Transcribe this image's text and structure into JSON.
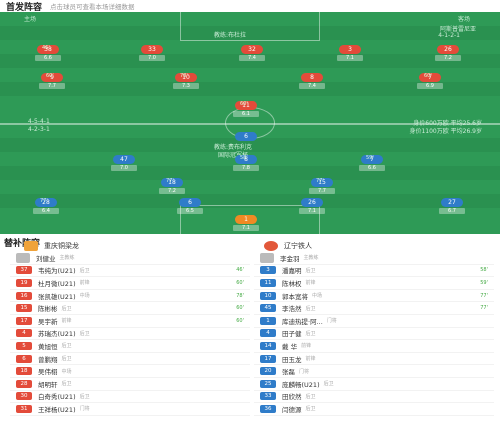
{
  "header": {
    "title": "首发阵容",
    "subtitle": "点击球员可查看本场详细数据"
  },
  "pitch": {
    "home_tag": "主场",
    "away_tag": "客场",
    "coach_top": "教练:布杜拉",
    "top_right": "阿斯普雷尼亚",
    "top_right2": "4-1-2-1",
    "mid_label": "国际冠军杯",
    "coach_bottom": "教练:费布利克",
    "home_form_icon": "4-5-4-1",
    "home_form2": "4-2-3-1",
    "right_info1": "身价600万欧 平均25.6岁",
    "right_info2": "身价1100万欧 平均26.9岁",
    "red_color": "#e34b3a",
    "blue_color": "#2f7cc9",
    "orange_color": "#f08a24"
  },
  "home_players": [
    {
      "n": "38",
      "name": "",
      "rating": "6.6",
      "ev": "46'"
    },
    {
      "n": "33",
      "name": "",
      "rating": "7.0",
      "ev": ""
    },
    {
      "n": "32",
      "name": "",
      "rating": "7.4",
      "ev": ""
    },
    {
      "n": "3",
      "name": "",
      "rating": "7.1",
      "ev": ""
    },
    {
      "n": "26",
      "name": "",
      "rating": "7.2",
      "ev": ""
    },
    {
      "n": "9",
      "name": "",
      "rating": "7.7",
      "ev": "60'"
    },
    {
      "n": "10",
      "name": "",
      "rating": "7.3",
      "ev": "78'"
    },
    {
      "n": "8",
      "name": "",
      "rating": "7.4",
      "ev": ""
    },
    {
      "n": "7",
      "name": "",
      "rating": "6.9",
      "ev": "60'"
    },
    {
      "n": "11",
      "name": "",
      "rating": "6.1",
      "ev": "60'"
    }
  ],
  "away_players": [
    {
      "n": "6",
      "name": "",
      "rating": "7.1",
      "ev": ""
    },
    {
      "n": "47",
      "name": "",
      "rating": "7.0",
      "ev": ""
    },
    {
      "n": "8",
      "name": "",
      "rating": "7.8",
      "ev": "58'"
    },
    {
      "n": "7",
      "name": "",
      "rating": "6.6",
      "ev": "59'"
    },
    {
      "n": "18",
      "name": "",
      "rating": "7.2",
      "ev": "77'"
    },
    {
      "n": "15",
      "name": "",
      "rating": "7.7",
      "ev": "77'"
    },
    {
      "n": "28",
      "name": "",
      "rating": "6.4",
      "ev": "77'"
    },
    {
      "n": "6",
      "name": "",
      "rating": "6.5",
      "ev": ""
    },
    {
      "n": "26",
      "name": "",
      "rating": "7.1",
      "ev": ""
    },
    {
      "n": "27",
      "name": "",
      "rating": "6.7",
      "ev": ""
    },
    {
      "n": "1",
      "name": "",
      "rating": "7.1",
      "ev": ""
    }
  ],
  "subs": {
    "title": "替补阵容",
    "home_team": "重庆铜梁龙",
    "away_team": "辽宁铁人",
    "home_coach": "刘健业",
    "home_coach_role": "主教练",
    "away_coach": "李金羽",
    "away_coach_role": "主教练",
    "home": [
      {
        "n": "37",
        "name": "韦纯为(U21)",
        "pos": "后卫",
        "ev": "46'"
      },
      {
        "n": "19",
        "name": "杜月微(U21)",
        "pos": "前锋",
        "ev": "60'"
      },
      {
        "n": "16",
        "name": "张凯雄(U21)",
        "pos": "中场",
        "ev": "78'"
      },
      {
        "n": "15",
        "name": "陈彬彬",
        "pos": "后卫",
        "ev": "60'"
      },
      {
        "n": "17",
        "name": "吴宇新",
        "pos": "前锋",
        "ev": "60'"
      },
      {
        "n": "4",
        "name": "苏瑞杰(U21)",
        "pos": "后卫",
        "ev": ""
      },
      {
        "n": "5",
        "name": "黄旭恒",
        "pos": "后卫",
        "ev": ""
      },
      {
        "n": "6",
        "name": "曾鹏翔",
        "pos": "后卫",
        "ev": ""
      },
      {
        "n": "18",
        "name": "吴伟栩",
        "pos": "中场",
        "ev": ""
      },
      {
        "n": "28",
        "name": "胡明轩",
        "pos": "后卫",
        "ev": ""
      },
      {
        "n": "30",
        "name": "白奇秀(U21)",
        "pos": "后卫",
        "ev": ""
      },
      {
        "n": "31",
        "name": "王祥杨(U21)",
        "pos": "门将",
        "ev": ""
      }
    ],
    "away": [
      {
        "n": "3",
        "name": "潘嘉明",
        "pos": "后卫",
        "ev": "58'"
      },
      {
        "n": "11",
        "name": "陈林权",
        "pos": "前锋",
        "ev": "59'"
      },
      {
        "n": "10",
        "name": "郭本宽将",
        "pos": "中场",
        "ev": "77'"
      },
      {
        "n": "45",
        "name": "李浩然",
        "pos": "后卫",
        "ev": "77'"
      },
      {
        "n": "1",
        "name": "库迪热提·阿...",
        "pos": "门将",
        "ev": ""
      },
      {
        "n": "4",
        "name": "田子健",
        "pos": "后卫",
        "ev": ""
      },
      {
        "n": "14",
        "name": "戴 华",
        "pos": "前锋",
        "ev": ""
      },
      {
        "n": "17",
        "name": "田玉龙",
        "pos": "前锋",
        "ev": ""
      },
      {
        "n": "20",
        "name": "张磊",
        "pos": "门将",
        "ev": ""
      },
      {
        "n": "25",
        "name": "庞麟畅(U21)",
        "pos": "后卫",
        "ev": ""
      },
      {
        "n": "33",
        "name": "田欣然",
        "pos": "后卫",
        "ev": ""
      },
      {
        "n": "36",
        "name": "闫德源",
        "pos": "后卫",
        "ev": ""
      }
    ]
  }
}
